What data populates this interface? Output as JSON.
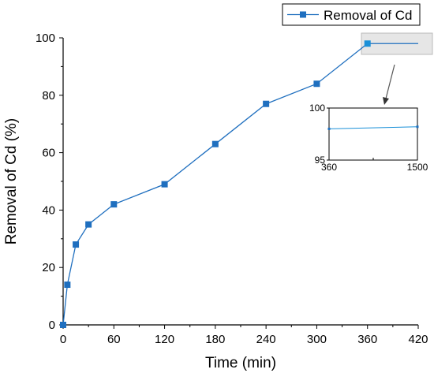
{
  "chart_data": {
    "type": "line",
    "xlabel": "Time (min)",
    "ylabel": "Removal of Cd (%)",
    "xlim": [
      0,
      420
    ],
    "ylim": [
      0,
      100
    ],
    "xticks": [
      "0",
      "60",
      "120",
      "180",
      "240",
      "300",
      "360",
      "420"
    ],
    "yticks": [
      "0",
      "20",
      "40",
      "60",
      "80",
      "100"
    ],
    "grid": false,
    "legend_position": "top-right",
    "series": [
      {
        "name": "Removal of Cd",
        "color": "#1f6fbf",
        "marker": "square",
        "x": [
          0,
          5,
          15,
          30,
          60,
          120,
          180,
          240,
          300,
          360,
          420
        ],
        "y": [
          0,
          14,
          28,
          35,
          42,
          49,
          63,
          77,
          84,
          98,
          98
        ]
      }
    ],
    "inset": {
      "xlim": [
        360,
        1500
      ],
      "ylim": [
        95,
        100
      ],
      "xticks": [
        "360",
        "1500"
      ],
      "yticks": [
        "95",
        "100"
      ],
      "x": [
        360,
        1500
      ],
      "y": [
        98,
        98.2
      ]
    }
  }
}
